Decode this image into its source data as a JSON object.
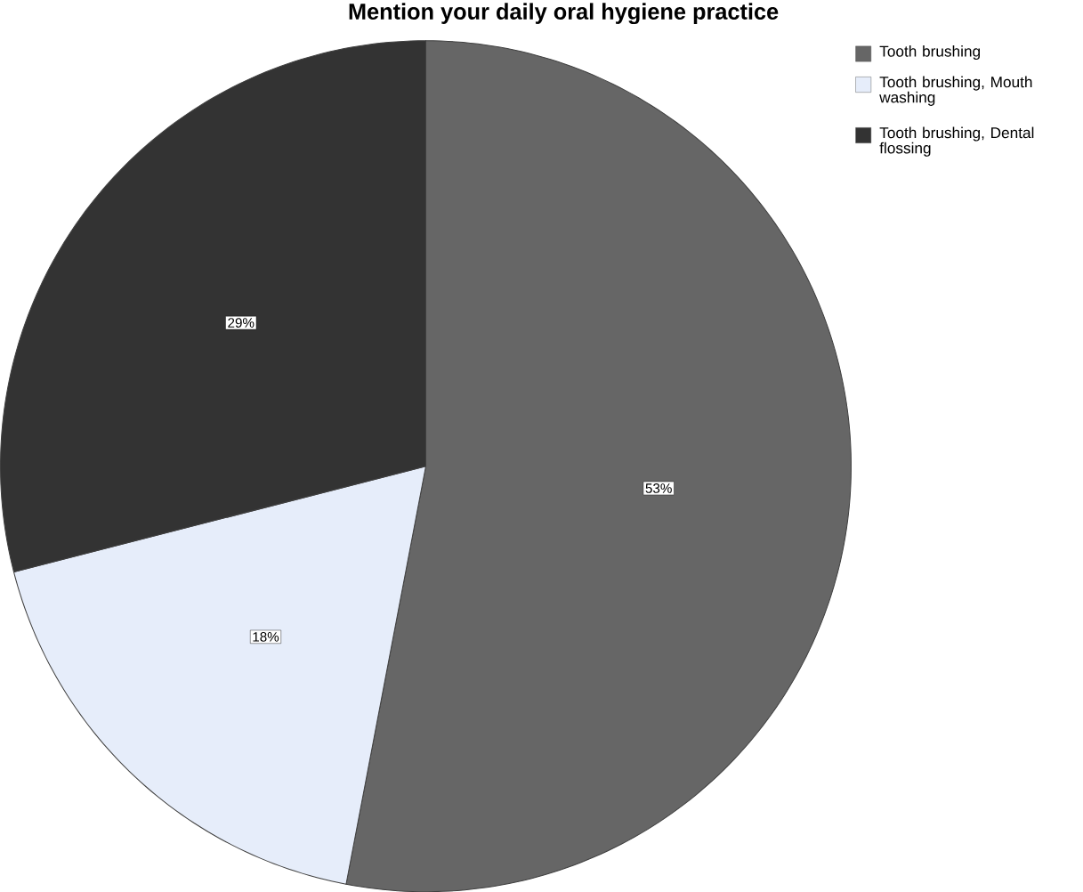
{
  "chart_data": {
    "type": "pie",
    "title": "Mention your daily oral hygiene practice",
    "categories": [
      "Tooth brushing",
      "Tooth brushing, Mouth washing",
      "Tooth brushing, Dental flossing"
    ],
    "values": [
      53,
      18,
      29
    ],
    "colors": [
      "#666666",
      "#e6edfa",
      "#333333"
    ],
    "value_labels": [
      "53%",
      "18%",
      "29%"
    ],
    "legend": "top right"
  }
}
